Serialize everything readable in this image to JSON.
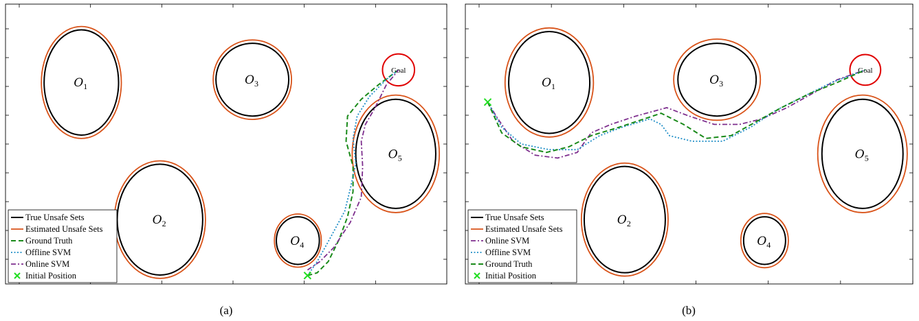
{
  "chart_data": [
    {
      "type": "line",
      "panel_label": "(a)",
      "xlim": [
        0,
        16
      ],
      "ylim": [
        0,
        10
      ],
      "grid": false,
      "legend_position": "bottom-left",
      "obstacles": [
        {
          "name": "O",
          "sub": "1",
          "cx": 2.75,
          "cy": 7.2,
          "true_rx": 1.35,
          "true_ry": 1.88,
          "est_rx": 1.45,
          "est_ry": 2.0
        },
        {
          "name": "O",
          "sub": "2",
          "cx": 5.6,
          "cy": 2.3,
          "true_rx": 1.55,
          "true_ry": 1.98,
          "est_rx": 1.65,
          "est_ry": 2.1
        },
        {
          "name": "O",
          "sub": "3",
          "cx": 8.95,
          "cy": 7.3,
          "true_rx": 1.32,
          "true_ry": 1.3,
          "est_rx": 1.42,
          "est_ry": 1.42
        },
        {
          "name": "O",
          "sub": "4",
          "cx": 10.6,
          "cy": 1.55,
          "true_rx": 0.78,
          "true_ry": 0.85,
          "est_rx": 0.85,
          "est_ry": 0.95
        },
        {
          "name": "O",
          "sub": "5",
          "cx": 14.15,
          "cy": 4.65,
          "true_rx": 1.45,
          "true_ry": 1.95,
          "est_rx": 1.58,
          "est_ry": 2.1
        }
      ],
      "goal": {
        "label": "Goal",
        "x": 14.25,
        "y": 7.65,
        "r": 0.58
      },
      "initial_position": {
        "x": 10.95,
        "y": 0.3
      },
      "series": [
        {
          "name": "Ground Truth",
          "style": "ground",
          "points": [
            [
              10.95,
              0.3
            ],
            [
              11.3,
              0.4
            ],
            [
              11.7,
              0.8
            ],
            [
              12.1,
              1.6
            ],
            [
              12.4,
              2.4
            ],
            [
              12.6,
              3.3
            ],
            [
              12.6,
              4.2
            ],
            [
              12.35,
              5.1
            ],
            [
              12.4,
              6.0
            ],
            [
              12.9,
              6.6
            ],
            [
              13.5,
              7.1
            ],
            [
              14.25,
              7.65
            ]
          ]
        },
        {
          "name": "Offline SVM",
          "style": "offline",
          "points": [
            [
              10.95,
              0.3
            ],
            [
              11.3,
              0.8
            ],
            [
              11.75,
              1.6
            ],
            [
              12.3,
              2.6
            ],
            [
              12.5,
              3.4
            ],
            [
              12.7,
              4.3
            ],
            [
              12.6,
              5.2
            ],
            [
              12.75,
              6.0
            ],
            [
              13.2,
              6.7
            ],
            [
              13.8,
              7.3
            ],
            [
              14.25,
              7.65
            ]
          ]
        },
        {
          "name": "Online SVM",
          "style": "online",
          "points": [
            [
              10.95,
              0.5
            ],
            [
              11.4,
              0.8
            ],
            [
              11.9,
              1.3
            ],
            [
              12.5,
              2.2
            ],
            [
              12.9,
              3.1
            ],
            [
              12.95,
              4.2
            ],
            [
              12.9,
              5.1
            ],
            [
              13.05,
              5.7
            ],
            [
              13.4,
              6.3
            ],
            [
              13.8,
              7.1
            ],
            [
              14.25,
              7.65
            ]
          ]
        }
      ],
      "legend": [
        "True Unsafe Sets",
        "Estimated Unsafe Sets",
        "Ground Truth",
        "Offline SVM",
        "Online SVM",
        "Initial Position"
      ]
    },
    {
      "type": "line",
      "panel_label": "(b)",
      "xlim": [
        0,
        16
      ],
      "ylim": [
        0,
        10
      ],
      "grid": false,
      "legend_position": "bottom-left",
      "obstacles": [
        {
          "name": "O",
          "sub": "1",
          "cx": 3.0,
          "cy": 7.2,
          "true_rx": 1.45,
          "true_ry": 1.82,
          "est_rx": 1.58,
          "est_ry": 1.95
        },
        {
          "name": "O",
          "sub": "2",
          "cx": 5.7,
          "cy": 2.3,
          "true_rx": 1.45,
          "true_ry": 1.9,
          "est_rx": 1.55,
          "est_ry": 2.02
        },
        {
          "name": "O",
          "sub": "3",
          "cx": 9.0,
          "cy": 7.3,
          "true_rx": 1.4,
          "true_ry": 1.3,
          "est_rx": 1.55,
          "est_ry": 1.45
        },
        {
          "name": "O",
          "sub": "4",
          "cx": 10.7,
          "cy": 1.55,
          "true_rx": 0.75,
          "true_ry": 0.85,
          "est_rx": 0.85,
          "est_ry": 0.97
        },
        {
          "name": "O",
          "sub": "5",
          "cx": 14.2,
          "cy": 4.65,
          "true_rx": 1.45,
          "true_ry": 1.95,
          "est_rx": 1.6,
          "est_ry": 2.1
        }
      ],
      "goal": {
        "label": "Goal",
        "x": 14.3,
        "y": 7.65,
        "r": 0.55
      },
      "initial_position": {
        "x": 0.8,
        "y": 6.5
      },
      "series": [
        {
          "name": "Online SVM",
          "style": "online",
          "points": [
            [
              0.8,
              6.5
            ],
            [
              1.1,
              6.0
            ],
            [
              1.7,
              5.1
            ],
            [
              2.5,
              4.6
            ],
            [
              3.3,
              4.5
            ],
            [
              4.0,
              4.7
            ],
            [
              4.5,
              5.4
            ],
            [
              5.2,
              5.7
            ],
            [
              6.1,
              6.0
            ],
            [
              7.2,
              6.3
            ],
            [
              8.0,
              6.0
            ],
            [
              8.9,
              5.7
            ],
            [
              9.8,
              5.7
            ],
            [
              10.6,
              5.9
            ],
            [
              11.5,
              6.3
            ],
            [
              12.4,
              6.8
            ],
            [
              13.3,
              7.3
            ],
            [
              14.3,
              7.65
            ]
          ]
        },
        {
          "name": "Offline SVM",
          "style": "offline",
          "points": [
            [
              0.8,
              6.5
            ],
            [
              1.3,
              5.6
            ],
            [
              2.0,
              5.0
            ],
            [
              3.0,
              4.8
            ],
            [
              4.0,
              4.8
            ],
            [
              4.8,
              5.3
            ],
            [
              5.6,
              5.6
            ],
            [
              6.6,
              5.9
            ],
            [
              7.0,
              5.7
            ],
            [
              7.3,
              5.3
            ],
            [
              8.1,
              5.1
            ],
            [
              9.2,
              5.1
            ],
            [
              10.2,
              5.6
            ],
            [
              11.1,
              6.2
            ],
            [
              12.1,
              6.7
            ],
            [
              13.1,
              7.2
            ],
            [
              14.3,
              7.65
            ]
          ]
        },
        {
          "name": "Ground Truth",
          "style": "ground",
          "points": [
            [
              0.8,
              6.5
            ],
            [
              1.3,
              5.4
            ],
            [
              2.0,
              4.9
            ],
            [
              2.9,
              4.7
            ],
            [
              3.7,
              4.9
            ],
            [
              4.5,
              5.3
            ],
            [
              5.5,
              5.6
            ],
            [
              6.4,
              5.9
            ],
            [
              7.0,
              6.1
            ],
            [
              7.8,
              5.7
            ],
            [
              8.6,
              5.2
            ],
            [
              9.5,
              5.3
            ],
            [
              10.4,
              5.8
            ],
            [
              11.3,
              6.3
            ],
            [
              12.3,
              6.8
            ],
            [
              13.3,
              7.2
            ],
            [
              14.3,
              7.65
            ]
          ]
        }
      ],
      "legend": [
        "True Unsafe Sets",
        "Estimated Unsafe Sets",
        "Online SVM",
        "Offline SVM",
        "Ground Truth",
        "Initial Position"
      ]
    }
  ]
}
